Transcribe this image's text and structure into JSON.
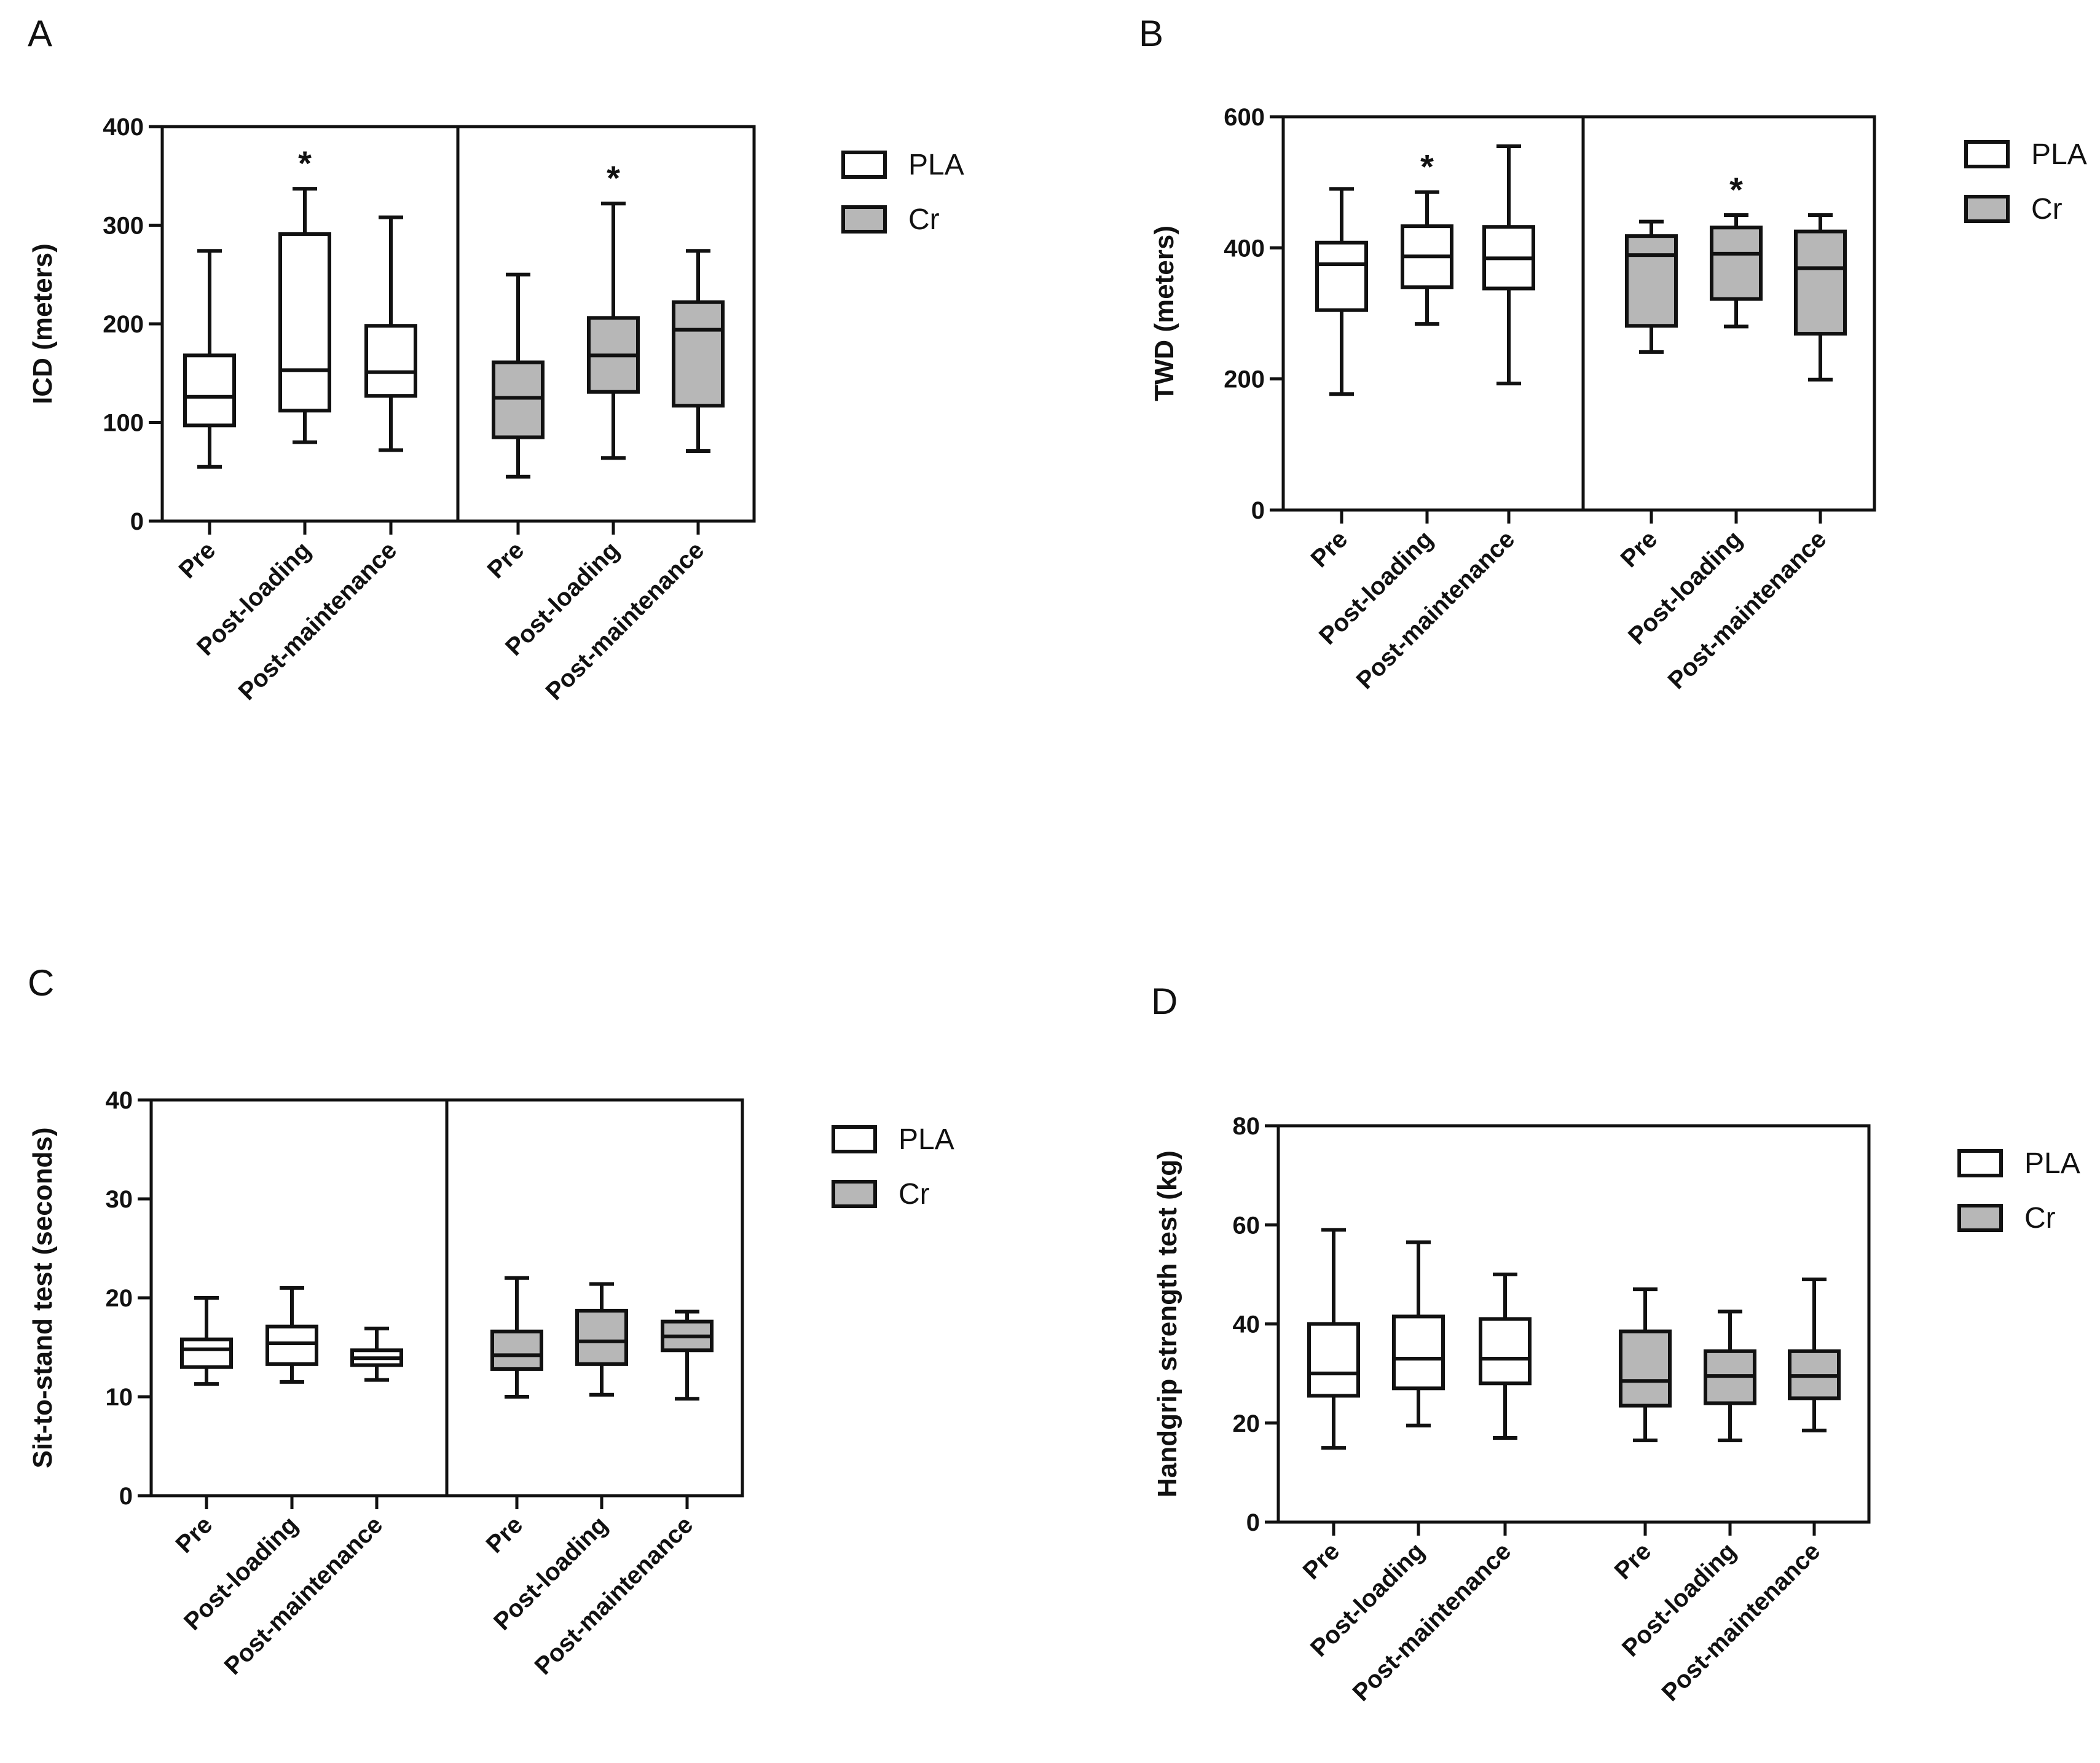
{
  "colors": {
    "pla_fill": "#ffffff",
    "cr_fill": "#b7b7b7",
    "stroke": "#111111"
  },
  "legend": {
    "pla": "PLA",
    "cr": "Cr"
  },
  "chart_data": [
    {
      "panel": "A",
      "type": "boxplot",
      "ylabel": "ICD (meters)",
      "ylim": [
        0,
        400
      ],
      "yticks": [
        "0",
        "100",
        "200",
        "300",
        "400"
      ],
      "divider": true,
      "groups": [
        {
          "name": "PLA",
          "categories": [
            "Pre",
            "Post-loading",
            "Post-maintenance"
          ],
          "boxes": [
            {
              "min": 55,
              "q1": 97,
              "median": 126,
              "q3": 168,
              "max": 274,
              "star": false
            },
            {
              "min": 80,
              "q1": 112,
              "median": 153,
              "q3": 291,
              "max": 337,
              "star": true
            },
            {
              "min": 72,
              "q1": 127,
              "median": 151,
              "q3": 198,
              "max": 308,
              "star": false
            }
          ]
        },
        {
          "name": "Cr",
          "categories": [
            "Pre",
            "Post-loading",
            "Post-maintenance"
          ],
          "boxes": [
            {
              "min": 45,
              "q1": 85,
              "median": 125,
              "q3": 161,
              "max": 250,
              "star": false
            },
            {
              "min": 64,
              "q1": 131,
              "median": 168,
              "q3": 206,
              "max": 322,
              "star": true
            },
            {
              "min": 71,
              "q1": 117,
              "median": 194,
              "q3": 222,
              "max": 274,
              "star": false
            }
          ]
        }
      ],
      "annotation": "*"
    },
    {
      "panel": "B",
      "type": "boxplot",
      "ylabel": "TWD (meters)",
      "ylim": [
        0,
        600
      ],
      "yticks": [
        "0",
        "200",
        "400",
        "600"
      ],
      "divider": true,
      "groups": [
        {
          "name": "PLA",
          "categories": [
            "Pre",
            "Post-loading",
            "Post-maintenance"
          ],
          "boxes": [
            {
              "min": 177,
              "q1": 305,
              "median": 375,
              "q3": 408,
              "max": 490,
              "star": false
            },
            {
              "min": 284,
              "q1": 340,
              "median": 387,
              "q3": 433,
              "max": 485,
              "star": true
            },
            {
              "min": 193,
              "q1": 338,
              "median": 384,
              "q3": 432,
              "max": 555,
              "star": false
            }
          ]
        },
        {
          "name": "Cr",
          "categories": [
            "Pre",
            "Post-loading",
            "Post-maintenance"
          ],
          "boxes": [
            {
              "min": 241,
              "q1": 281,
              "median": 389,
              "q3": 418,
              "max": 440,
              "star": false
            },
            {
              "min": 280,
              "q1": 322,
              "median": 391,
              "q3": 431,
              "max": 450,
              "star": true
            },
            {
              "min": 199,
              "q1": 269,
              "median": 369,
              "q3": 425,
              "max": 450,
              "star": false
            }
          ]
        }
      ],
      "annotation": "*"
    },
    {
      "panel": "C",
      "type": "boxplot",
      "ylabel": "Sit-to-stand test (seconds)",
      "ylim": [
        0,
        40
      ],
      "yticks": [
        "0",
        "10",
        "20",
        "30",
        "40"
      ],
      "divider": true,
      "groups": [
        {
          "name": "PLA",
          "categories": [
            "Pre",
            "Post-loading",
            "Post-maintenance"
          ],
          "boxes": [
            {
              "min": 11.3,
              "q1": 13.0,
              "median": 14.8,
              "q3": 15.8,
              "max": 20.0,
              "star": false
            },
            {
              "min": 11.5,
              "q1": 13.3,
              "median": 15.4,
              "q3": 17.1,
              "max": 21.0,
              "star": false
            },
            {
              "min": 11.7,
              "q1": 13.2,
              "median": 13.9,
              "q3": 14.7,
              "max": 16.9,
              "star": false
            }
          ]
        },
        {
          "name": "Cr",
          "categories": [
            "Pre",
            "Post-loading",
            "Post-maintenance"
          ],
          "boxes": [
            {
              "min": 10.0,
              "q1": 12.8,
              "median": 14.2,
              "q3": 16.6,
              "max": 22.0,
              "star": false
            },
            {
              "min": 10.2,
              "q1": 13.3,
              "median": 15.6,
              "q3": 18.7,
              "max": 21.4,
              "star": false
            },
            {
              "min": 9.8,
              "q1": 14.7,
              "median": 16.1,
              "q3": 17.6,
              "max": 18.6,
              "star": false
            }
          ]
        }
      ],
      "annotation": ""
    },
    {
      "panel": "D",
      "type": "boxplot",
      "ylabel": "Handgrip strength test (kg)",
      "ylim": [
        0,
        80
      ],
      "yticks": [
        "0",
        "20",
        "40",
        "60",
        "80"
      ],
      "divider": false,
      "groups": [
        {
          "name": "PLA",
          "categories": [
            "Pre",
            "Post-loading",
            "Post-maintenance"
          ],
          "boxes": [
            {
              "min": 15,
              "q1": 25.5,
              "median": 30,
              "q3": 40,
              "max": 59,
              "star": false
            },
            {
              "min": 19.5,
              "q1": 27,
              "median": 33,
              "q3": 41.5,
              "max": 56.5,
              "star": false
            },
            {
              "min": 17,
              "q1": 28,
              "median": 33,
              "q3": 41,
              "max": 50,
              "star": false
            }
          ]
        },
        {
          "name": "Cr",
          "categories": [
            "Pre",
            "Post-loading",
            "Post-maintenance"
          ],
          "boxes": [
            {
              "min": 16.5,
              "q1": 23.5,
              "median": 28.5,
              "q3": 38.5,
              "max": 47,
              "star": false
            },
            {
              "min": 16.5,
              "q1": 24,
              "median": 29.5,
              "q3": 34.5,
              "max": 42.5,
              "star": false
            },
            {
              "min": 18.5,
              "q1": 25,
              "median": 29.5,
              "q3": 34.5,
              "max": 49,
              "star": false
            }
          ]
        }
      ],
      "annotation": ""
    }
  ]
}
